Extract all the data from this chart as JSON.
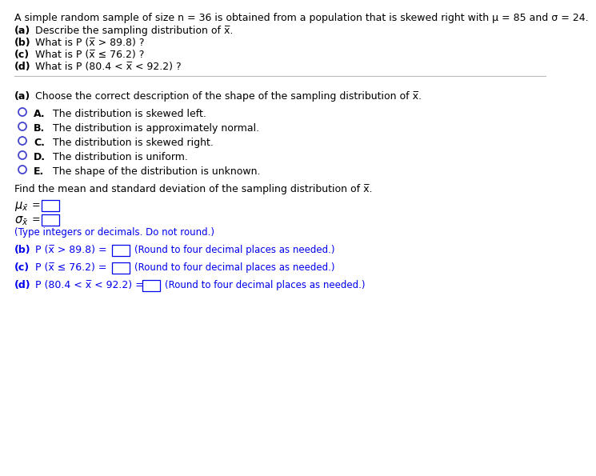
{
  "bg_color": "#ffffff",
  "blue": "#0000ee",
  "black": "#000000",
  "circle_edge": "#4444cc",
  "line1": "A simple random sample of size n = 36 is obtained from a population that is skewed right with μ = 85 and σ = 24.",
  "q_a_bold": "(a)",
  "q_a_rest": " Describe the sampling distribution of x̅.",
  "q_b_bold": "(b)",
  "q_b_rest": " What is P (ˉx > 89.8) ?",
  "q_b_rest2": " What is P (x̅ > 89.8) ?",
  "q_c_rest": " What is P (x̅ ≤ 76.2) ?",
  "q_d_rest": " What is P (80.4 < x̅ < 92.2) ?",
  "sec_a_bold": "(a)",
  "sec_a_rest": " Choose the correct description of the shape of the sampling distribution of x̅.",
  "choices": [
    [
      "A.",
      " The distribution is skewed left."
    ],
    [
      "B.",
      " The distribution is approximately normal."
    ],
    [
      "C.",
      " The distribution is skewed right."
    ],
    [
      "D.",
      " The distribution is uniform."
    ],
    [
      "E.",
      " The shape of the distribution is unknown."
    ]
  ],
  "find_text": "Find the mean and standard deviation of the sampling distribution of x̅.",
  "type_note": "(Type integers or decimals. Do not round.)",
  "round_note": "(Round to four decimal places as needed.)"
}
